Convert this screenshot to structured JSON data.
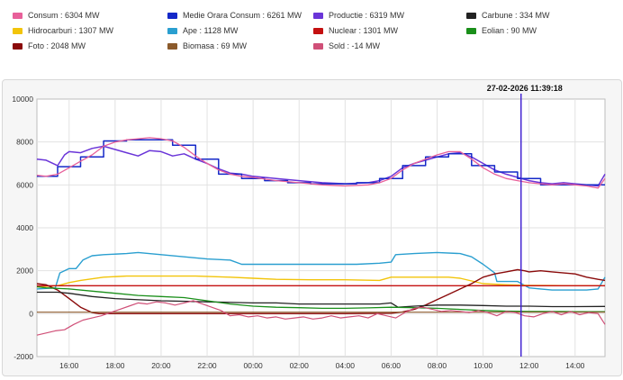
{
  "legend": [
    {
      "label": "Consum : 6304 MW",
      "color": "#e8609a"
    },
    {
      "label": "Medie Orara Consum : 6261 MW",
      "color": "#1428c8"
    },
    {
      "label": "Productie : 6319 MW",
      "color": "#6a35d8"
    },
    {
      "label": "Carbune : 334 MW",
      "color": "#222222"
    },
    {
      "label": "Hidrocarburi : 1307 MW",
      "color": "#f2c40a"
    },
    {
      "label": "Ape : 1128 MW",
      "color": "#2a9fd0"
    },
    {
      "label": "Nuclear : 1301 MW",
      "color": "#c41010"
    },
    {
      "label": "Eolian : 90 MW",
      "color": "#1a8f1a"
    },
    {
      "label": "Foto : 2048 MW",
      "color": "#8a0a0a"
    },
    {
      "label": "Biomasa : 69 MW",
      "color": "#8b5a2b"
    },
    {
      "label": "Sold : -14 MW",
      "color": "#d05078"
    }
  ],
  "chart_data": {
    "type": "line",
    "title": "",
    "xlabel": "",
    "ylabel": "",
    "ylim": [
      -2000,
      10000
    ],
    "y_ticks": [
      "-2000",
      "0",
      "2000",
      "4000",
      "6000",
      "8000",
      "10000"
    ],
    "y_tick_values": [
      -2000,
      0,
      2000,
      4000,
      6000,
      8000,
      10000
    ],
    "x_range_hours": [
      14.6,
      39.3
    ],
    "x_ticks": [
      "16:00",
      "18:00",
      "20:00",
      "22:00",
      "00:00",
      "02:00",
      "04:00",
      "06:00",
      "08:00",
      "10:00",
      "12:00",
      "14:00"
    ],
    "x_tick_hours": [
      16,
      18,
      20,
      22,
      24,
      26,
      28,
      30,
      32,
      34,
      36,
      38
    ],
    "cursor": {
      "hour": 35.65,
      "label": "27-02-2026 11:39:18"
    },
    "grid": true,
    "series": [
      {
        "name": "Productie",
        "color": "#6a35d8",
        "width": 1.5,
        "x": [
          14.6,
          15.0,
          15.5,
          15.8,
          16.0,
          16.5,
          17.0,
          17.5,
          18.0,
          18.5,
          19.0,
          19.5,
          20.0,
          20.5,
          21.0,
          21.5,
          22.0,
          22.5,
          23.0,
          23.5,
          24.0,
          25.0,
          26.0,
          27.0,
          28.0,
          29.0,
          29.5,
          30.0,
          30.5,
          31.0,
          31.5,
          32.0,
          32.5,
          33.0,
          33.5,
          34.0,
          34.5,
          35.0,
          35.5,
          36.0,
          36.5,
          37.0,
          37.5,
          38.0,
          38.5,
          39.0,
          39.3
        ],
        "values": [
          7200,
          7150,
          6900,
          7400,
          7550,
          7500,
          7700,
          7800,
          7650,
          7500,
          7350,
          7600,
          7550,
          7350,
          7450,
          7200,
          7000,
          6750,
          6550,
          6500,
          6400,
          6300,
          6200,
          6100,
          6050,
          6100,
          6200,
          6400,
          6800,
          7000,
          7150,
          7300,
          7450,
          7500,
          7300,
          7000,
          6700,
          6500,
          6350,
          6200,
          6100,
          6050,
          6100,
          6050,
          6000,
          5950,
          6500
        ]
      },
      {
        "name": "Medie Orara Consum",
        "color": "#1428c8",
        "width": 1.5,
        "x": [
          14.6,
          15.5,
          15.5,
          16.5,
          16.5,
          17.5,
          17.5,
          18.5,
          18.5,
          19.5,
          19.5,
          20.5,
          20.5,
          21.5,
          21.5,
          22.5,
          22.5,
          23.5,
          23.5,
          24.5,
          24.5,
          25.5,
          25.5,
          26.5,
          26.5,
          27.5,
          27.5,
          28.5,
          28.5,
          29.5,
          29.5,
          30.5,
          30.5,
          31.5,
          31.5,
          32.5,
          32.5,
          33.5,
          33.5,
          34.5,
          34.5,
          35.5,
          35.5,
          36.5,
          36.5,
          37.5,
          37.5,
          38.5,
          38.5,
          39.3
        ],
        "values": [
          6400,
          6400,
          6850,
          6850,
          7300,
          7300,
          8050,
          8050,
          8100,
          8100,
          8100,
          8100,
          7850,
          7850,
          7200,
          7200,
          6500,
          6500,
          6300,
          6300,
          6200,
          6200,
          6100,
          6100,
          6050,
          6050,
          6050,
          6050,
          6100,
          6100,
          6300,
          6300,
          6900,
          6900,
          7300,
          7300,
          7450,
          7450,
          6900,
          6900,
          6600,
          6600,
          6300,
          6300,
          6000,
          6000,
          6000,
          6000,
          6000,
          6000
        ]
      },
      {
        "name": "Consum",
        "color": "#e8609a",
        "width": 1.3,
        "x": [
          14.6,
          15.0,
          15.5,
          16.0,
          16.5,
          17.0,
          17.5,
          18.0,
          18.5,
          19.0,
          19.5,
          20.0,
          20.5,
          21.0,
          21.5,
          22.0,
          22.5,
          23.0,
          23.5,
          24.0,
          25.0,
          26.0,
          27.0,
          28.0,
          29.0,
          29.5,
          30.0,
          30.5,
          31.0,
          31.5,
          32.0,
          32.5,
          33.0,
          33.5,
          34.0,
          34.5,
          35.0,
          35.5,
          36.0,
          36.5,
          37.0,
          37.5,
          38.0,
          38.5,
          39.0,
          39.3
        ],
        "values": [
          6450,
          6400,
          6500,
          6800,
          7100,
          7400,
          7800,
          8000,
          8100,
          8150,
          8200,
          8150,
          8050,
          7750,
          7350,
          7000,
          6700,
          6500,
          6400,
          6350,
          6200,
          6100,
          6000,
          5950,
          6000,
          6100,
          6300,
          6700,
          7000,
          7200,
          7400,
          7550,
          7550,
          7200,
          6800,
          6500,
          6300,
          6200,
          6100,
          6050,
          6000,
          6050,
          6000,
          5950,
          5850,
          6300
        ]
      },
      {
        "name": "Ape",
        "color": "#2a9fd0",
        "width": 1.4,
        "x": [
          14.6,
          15.4,
          15.6,
          16.0,
          16.3,
          16.6,
          17.0,
          17.5,
          18.5,
          19.0,
          20.0,
          21.0,
          22.0,
          23.0,
          23.5,
          24.5,
          25.5,
          26.5,
          27.5,
          28.5,
          29.5,
          30.0,
          30.2,
          31.0,
          32.0,
          33.0,
          33.5,
          34.0,
          34.5,
          34.6,
          35.5,
          36.0,
          36.5,
          37.0,
          38.0,
          38.5,
          39.0,
          39.3
        ],
        "values": [
          1150,
          1200,
          1900,
          2100,
          2100,
          2500,
          2700,
          2750,
          2800,
          2850,
          2750,
          2650,
          2550,
          2500,
          2300,
          2300,
          2300,
          2300,
          2300,
          2300,
          2350,
          2400,
          2750,
          2800,
          2850,
          2800,
          2650,
          2300,
          1900,
          1500,
          1500,
          1200,
          1150,
          1100,
          1100,
          1100,
          1150,
          1700
        ]
      },
      {
        "name": "Hidrocarburi",
        "color": "#f2c40a",
        "width": 1.4,
        "x": [
          14.6,
          15.5,
          16.0,
          16.5,
          17.5,
          18.5,
          20.0,
          21.5,
          23.0,
          24.0,
          25.0,
          26.5,
          28.0,
          29.5,
          30.0,
          31.0,
          32.5,
          33.0,
          34.0,
          35.0,
          36.0,
          37.0,
          38.0,
          39.3
        ],
        "values": [
          1250,
          1300,
          1450,
          1550,
          1700,
          1750,
          1750,
          1750,
          1700,
          1650,
          1600,
          1580,
          1580,
          1550,
          1700,
          1700,
          1700,
          1650,
          1400,
          1350,
          1320,
          1310,
          1300,
          1300
        ]
      },
      {
        "name": "Nuclear",
        "color": "#c41010",
        "width": 1.4,
        "x": [
          14.6,
          39.3
        ],
        "values": [
          1300,
          1300
        ]
      },
      {
        "name": "Foto",
        "color": "#8a0a0a",
        "width": 1.4,
        "x": [
          14.6,
          15.0,
          15.5,
          16.0,
          16.5,
          17.0,
          17.3,
          18.0,
          19.0,
          20.0,
          22.0,
          24.0,
          26.0,
          28.0,
          30.0,
          30.5,
          31.0,
          31.5,
          32.0,
          32.5,
          33.0,
          33.5,
          34.0,
          34.5,
          35.0,
          35.5,
          35.8,
          36.0,
          36.5,
          37.0,
          37.5,
          38.0,
          38.5,
          39.0,
          39.3
        ],
        "values": [
          1400,
          1350,
          1100,
          700,
          300,
          50,
          0,
          0,
          0,
          0,
          0,
          0,
          0,
          0,
          20,
          80,
          200,
          400,
          650,
          900,
          1150,
          1400,
          1700,
          1850,
          1950,
          2050,
          2000,
          1950,
          2000,
          1950,
          1900,
          1850,
          1700,
          1600,
          1550
        ]
      },
      {
        "name": "Carbune",
        "color": "#222222",
        "width": 1.3,
        "x": [
          14.6,
          15.5,
          16.0,
          17.0,
          18.0,
          20.0,
          22.0,
          24.0,
          25.0,
          26.0,
          28.0,
          29.5,
          30.0,
          30.3,
          31.0,
          32.0,
          33.0,
          34.0,
          35.0,
          36.0,
          37.0,
          38.0,
          39.3
        ],
        "values": [
          1000,
          1000,
          950,
          800,
          700,
          600,
          550,
          500,
          500,
          450,
          450,
          450,
          500,
          300,
          350,
          400,
          400,
          380,
          350,
          350,
          330,
          330,
          335
        ]
      },
      {
        "name": "Eolian",
        "color": "#1a8f1a",
        "width": 1.3,
        "x": [
          14.6,
          15.0,
          16.0,
          17.0,
          18.0,
          19.0,
          20.0,
          21.0,
          22.0,
          23.0,
          24.0,
          25.0,
          26.0,
          27.0,
          28.0,
          29.0,
          30.0,
          31.0,
          32.0,
          33.0,
          34.0,
          35.0,
          36.0,
          37.0,
          38.0,
          39.3
        ],
        "values": [
          1250,
          1200,
          1150,
          1050,
          950,
          850,
          800,
          750,
          600,
          450,
          350,
          300,
          280,
          250,
          250,
          270,
          300,
          280,
          250,
          200,
          150,
          120,
          100,
          100,
          95,
          90
        ]
      },
      {
        "name": "Biomasa",
        "color": "#8b5a2b",
        "width": 1.2,
        "x": [
          14.6,
          39.3
        ],
        "values": [
          70,
          69
        ]
      },
      {
        "name": "Sold",
        "color": "#d05078",
        "width": 1.2,
        "x": [
          14.6,
          15.0,
          15.4,
          15.8,
          16.2,
          16.6,
          17.0,
          17.4,
          17.8,
          18.2,
          18.6,
          19.0,
          19.4,
          19.8,
          20.2,
          20.6,
          21.0,
          21.4,
          21.8,
          22.2,
          22.6,
          23.0,
          23.4,
          23.8,
          24.2,
          24.6,
          25.0,
          25.4,
          25.8,
          26.2,
          26.6,
          27.0,
          27.4,
          27.8,
          28.2,
          28.6,
          29.0,
          29.4,
          29.8,
          30.2,
          30.6,
          31.0,
          31.4,
          31.8,
          32.2,
          32.6,
          33.0,
          33.4,
          33.8,
          34.2,
          34.6,
          35.0,
          35.4,
          35.8,
          36.2,
          36.6,
          37.0,
          37.4,
          37.8,
          38.2,
          38.6,
          39.0,
          39.3
        ],
        "values": [
          -1000,
          -900,
          -800,
          -750,
          -500,
          -300,
          -200,
          -100,
          50,
          200,
          350,
          500,
          450,
          550,
          500,
          400,
          500,
          600,
          450,
          300,
          150,
          -100,
          -50,
          -150,
          -100,
          -200,
          -150,
          -250,
          -200,
          -150,
          -250,
          -200,
          -100,
          -200,
          -150,
          -100,
          -200,
          0,
          -100,
          -200,
          50,
          250,
          300,
          200,
          100,
          150,
          100,
          50,
          150,
          50,
          -100,
          100,
          50,
          -100,
          -150,
          0,
          100,
          -50,
          100,
          -50,
          50,
          0,
          -500
        ]
      }
    ]
  }
}
